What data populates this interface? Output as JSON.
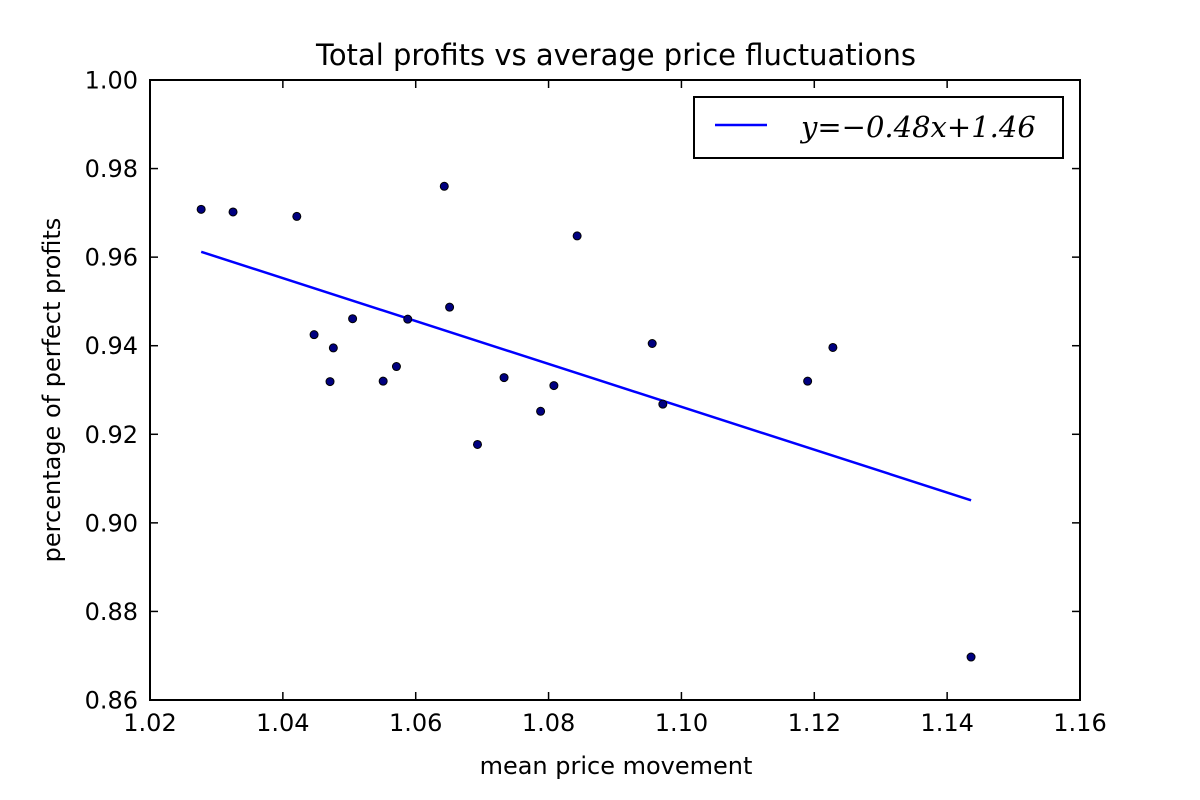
{
  "chart_data": {
    "type": "scatter",
    "title": "Total profits vs average price fluctuations",
    "xlabel": "mean price movement",
    "ylabel": "percentage of perfect profits",
    "xlim": [
      1.02,
      1.16
    ],
    "ylim": [
      0.86,
      1.0
    ],
    "x_ticks": [
      "1.02",
      "1.04",
      "1.06",
      "1.08",
      "1.10",
      "1.12",
      "1.14",
      "1.16"
    ],
    "y_ticks": [
      "0.86",
      "0.88",
      "0.90",
      "0.92",
      "0.94",
      "0.96",
      "0.98",
      "1.00"
    ],
    "grid": false,
    "legend_position": "top-right",
    "series": [
      {
        "kind": "scatter",
        "color": "#000080",
        "points": [
          {
            "x": 1.0277,
            "y": 0.9708
          },
          {
            "x": 1.0325,
            "y": 0.9702
          },
          {
            "x": 1.0421,
            "y": 0.9692
          },
          {
            "x": 1.0447,
            "y": 0.9425
          },
          {
            "x": 1.0471,
            "y": 0.9319
          },
          {
            "x": 1.0476,
            "y": 0.9395
          },
          {
            "x": 1.0505,
            "y": 0.9461
          },
          {
            "x": 1.0551,
            "y": 0.932
          },
          {
            "x": 1.0571,
            "y": 0.9353
          },
          {
            "x": 1.0588,
            "y": 0.946
          },
          {
            "x": 1.0643,
            "y": 0.976
          },
          {
            "x": 1.0651,
            "y": 0.9487
          },
          {
            "x": 1.0693,
            "y": 0.9177
          },
          {
            "x": 1.0733,
            "y": 0.9328
          },
          {
            "x": 1.0788,
            "y": 0.9252
          },
          {
            "x": 1.0808,
            "y": 0.931
          },
          {
            "x": 1.0843,
            "y": 0.9648
          },
          {
            "x": 1.0956,
            "y": 0.9405
          },
          {
            "x": 1.0972,
            "y": 0.9268
          },
          {
            "x": 1.119,
            "y": 0.932
          },
          {
            "x": 1.1228,
            "y": 0.9396
          },
          {
            "x": 1.1436,
            "y": 0.8697
          }
        ]
      },
      {
        "kind": "line",
        "name": "y=−0.48x+1.46",
        "color": "#0000ff",
        "points": [
          {
            "x": 1.0277,
            "y": 0.9612
          },
          {
            "x": 1.1436,
            "y": 0.9051
          }
        ]
      }
    ]
  }
}
